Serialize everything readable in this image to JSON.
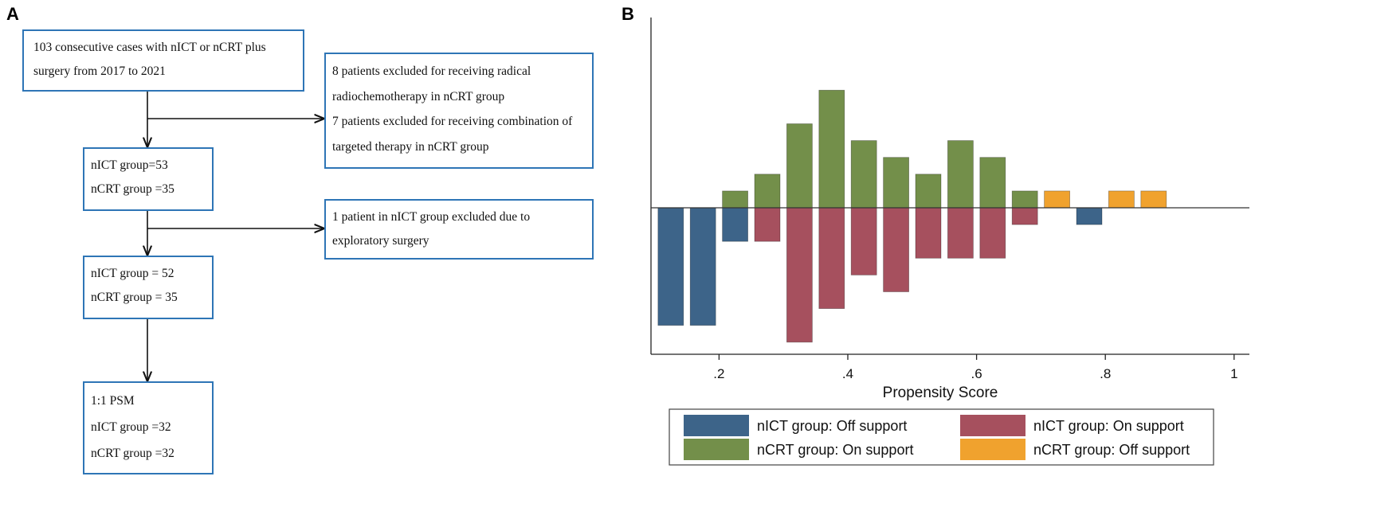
{
  "panels": {
    "a": "A",
    "b": "B"
  },
  "flowchart": {
    "box1": [
      "103 consecutive cases with nICT or nCRT plus",
      "surgery from 2017 to 2021"
    ],
    "excl1": [
      "8 patients excluded for receiving radical",
      "radiochemotherapy in nCRT group",
      "7 patients excluded for receiving combination of",
      "targeted therapy in nCRT group"
    ],
    "box2": [
      "nICT group=53",
      "nCRT group =35"
    ],
    "excl2": [
      "1 patient  in nICT group excluded due to",
      "exploratory surgery"
    ],
    "box3": [
      "nICT group = 52",
      "nCRT group = 35"
    ],
    "box4": [
      "1:1 PSM",
      "nICT group =32",
      "nCRT group =32"
    ]
  },
  "colors": {
    "border": "#2e75b6",
    "nict_off": "#3d6489",
    "nict_on": "#a6505e",
    "ncrt_on": "#738f4a",
    "ncrt_off": "#f0a22e"
  },
  "chart_data": {
    "type": "bar",
    "subtype": "mirrored-histogram",
    "xlabel": "Propensity Score",
    "xlim": [
      0.1,
      1.0
    ],
    "ylim": [
      -6,
      7
    ],
    "bin_width": 0.05,
    "xticks": [
      0.2,
      0.4,
      0.6,
      0.8,
      1.0
    ],
    "xtick_labels": [
      ".2",
      ".4",
      ".6",
      ".8",
      "1"
    ],
    "baseline": 0,
    "legend": {
      "position": "bottom",
      "entries": [
        {
          "key": "nict_off",
          "label": "nICT group: Off support"
        },
        {
          "key": "nict_on",
          "label": "nICT group: On support"
        },
        {
          "key": "ncrt_on",
          "label": "nCRT group: On support"
        },
        {
          "key": "ncrt_off",
          "label": "nCRT group: Off support"
        }
      ]
    },
    "series": [
      {
        "key": "ncrt_on",
        "name": "nCRT group: On support",
        "direction": "up",
        "bins": [
          [
            0.225,
            1
          ],
          [
            0.275,
            2
          ],
          [
            0.325,
            5
          ],
          [
            0.375,
            7
          ],
          [
            0.425,
            4
          ],
          [
            0.475,
            3
          ],
          [
            0.525,
            2
          ],
          [
            0.575,
            4
          ],
          [
            0.625,
            3
          ],
          [
            0.675,
            1
          ]
        ]
      },
      {
        "key": "ncrt_off",
        "name": "nCRT group: Off support",
        "direction": "up",
        "bins": [
          [
            0.725,
            1
          ],
          [
            0.825,
            1
          ],
          [
            0.875,
            1
          ]
        ]
      },
      {
        "key": "nict_off",
        "name": "nICT group: Off support",
        "direction": "down",
        "bins": [
          [
            0.125,
            7
          ],
          [
            0.175,
            7
          ],
          [
            0.225,
            2
          ],
          [
            0.775,
            1
          ]
        ]
      },
      {
        "key": "nict_on",
        "name": "nICT group: On support",
        "direction": "down",
        "bins": [
          [
            0.275,
            2
          ],
          [
            0.325,
            8
          ],
          [
            0.375,
            6
          ],
          [
            0.425,
            4
          ],
          [
            0.475,
            5
          ],
          [
            0.525,
            3
          ],
          [
            0.575,
            3
          ],
          [
            0.625,
            3
          ],
          [
            0.675,
            1
          ]
        ]
      }
    ]
  }
}
